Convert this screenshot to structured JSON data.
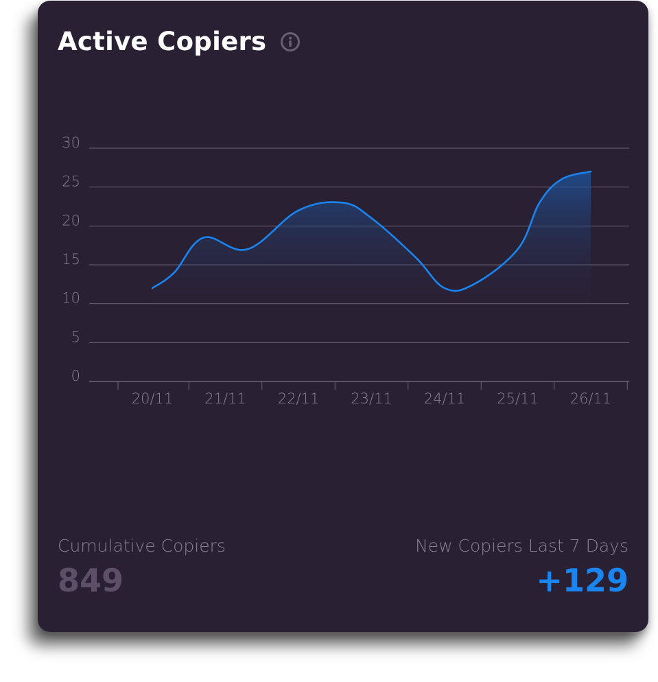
{
  "card": {
    "title": "Active Copiers",
    "info_icon": "info-icon"
  },
  "stats": {
    "cumulative_label": "Cumulative Copiers",
    "cumulative_value": "849",
    "new_label": "New Copiers Last 7 Days",
    "new_value": "+129"
  },
  "colors": {
    "background": "#2a2033",
    "line": "#1a84ef",
    "grid": "#6e6478",
    "label": "#8a7f95",
    "cumulative_value": "#5b5068",
    "new_value": "#1a84ef"
  },
  "chart_data": {
    "type": "area",
    "title": "",
    "xlabel": "",
    "ylabel": "",
    "categories": [
      "20/11",
      "21/11",
      "22/11",
      "23/11",
      "24/11",
      "25/11",
      "26/11"
    ],
    "x": [
      0,
      0.3,
      0.7,
      1.3,
      2.0,
      2.6,
      3.0,
      3.6,
      4.0,
      4.4,
      5.0,
      5.3,
      5.6,
      6.0
    ],
    "values": [
      12,
      14,
      18.5,
      17,
      22,
      23,
      21,
      16,
      12,
      12.5,
      17,
      23,
      26,
      27
    ],
    "ylim": [
      0,
      30
    ],
    "yticks": [
      0,
      5,
      10,
      15,
      20,
      25,
      30
    ],
    "grid": true,
    "legend": "none"
  }
}
